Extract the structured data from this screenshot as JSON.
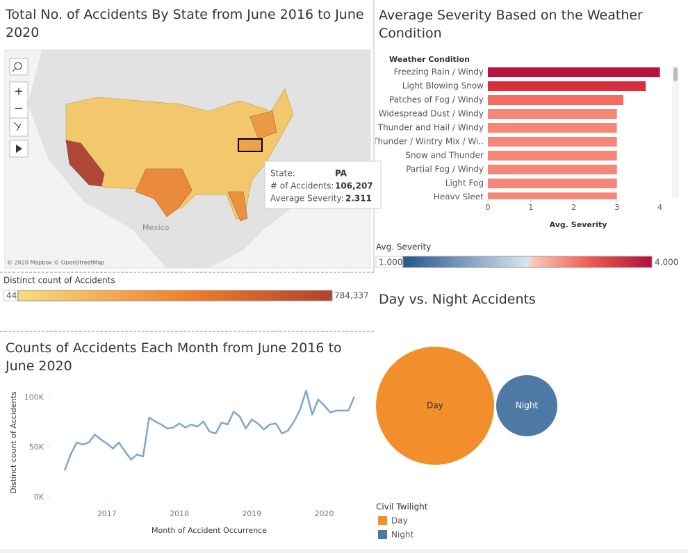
{
  "map": {
    "title": "Total No. of Accidents By State from June 2016 to June 2020",
    "place_label": "Mexico",
    "attribution": "© 2020 Mapbox © OpenStreetMap",
    "tooltip": {
      "state_label": "State:",
      "state": "PA",
      "accidents_label": "# of Accidents:",
      "accidents": "106,207",
      "severity_label": "Average Severity:",
      "severity": "2.311"
    },
    "legend": {
      "title": "Distinct count of Accidents",
      "min": "44",
      "max": "784,337"
    }
  },
  "severity_legend": {
    "title": "Avg. Severity",
    "min": "1.000",
    "max": "4.000"
  },
  "chart_data": [
    {
      "type": "hbar",
      "title": "Average Severity Based on the Weather Condition",
      "category_header": "Weather Condition",
      "xlabel": "Avg. Severity",
      "categories": [
        "Freezing Rain / Windy",
        "Light Blowing Snow",
        "Patches of Fog / Windy",
        "Widespread Dust / Windy",
        "Thunder and Hail / Windy",
        "Thunder / Wintry Mix / Wi..",
        "Snow and Thunder",
        "Partial Fog / Windy",
        "Light Fog",
        "Heavy Sleet"
      ],
      "values": [
        4.0,
        3.67,
        3.15,
        3.0,
        3.0,
        3.0,
        3.0,
        3.0,
        3.0,
        3.0
      ],
      "colors": [
        "#b8123e",
        "#d8303e",
        "#f26e5e",
        "#f4877a",
        "#f4877a",
        "#f4877a",
        "#f4877a",
        "#f4877a",
        "#f4877a",
        "#f4877a"
      ],
      "xlim": [
        0,
        4.2
      ],
      "xticks": [
        0,
        1,
        2,
        3,
        4
      ]
    },
    {
      "type": "line",
      "title": "Counts of Accidents Each Month from June 2016 to June 2020",
      "ylabel": "Distinct count of Accidents",
      "xlabel": "Month of Accident Occurrence",
      "color": "#7ea6cb",
      "x": [
        "2016-06",
        "2016-07",
        "2016-08",
        "2016-09",
        "2016-10",
        "2016-11",
        "2016-12",
        "2017-01",
        "2017-02",
        "2017-03",
        "2017-04",
        "2017-05",
        "2017-06",
        "2017-07",
        "2017-08",
        "2017-09",
        "2017-10",
        "2017-11",
        "2017-12",
        "2018-01",
        "2018-02",
        "2018-03",
        "2018-04",
        "2018-05",
        "2018-06",
        "2018-07",
        "2018-08",
        "2018-09",
        "2018-10",
        "2018-11",
        "2018-12",
        "2019-01",
        "2019-02",
        "2019-03",
        "2019-04",
        "2019-05",
        "2019-06",
        "2019-07",
        "2019-08",
        "2019-09",
        "2019-10",
        "2019-11",
        "2019-12",
        "2020-01",
        "2020-02",
        "2020-03",
        "2020-04",
        "2020-05",
        "2020-06"
      ],
      "values": [
        27000,
        43000,
        55000,
        53000,
        55000,
        63000,
        58000,
        54000,
        49000,
        55000,
        46000,
        38000,
        43000,
        41000,
        80000,
        76000,
        73000,
        69000,
        70000,
        74000,
        70000,
        73000,
        71000,
        76000,
        66000,
        64000,
        75000,
        73000,
        86000,
        81000,
        69000,
        78000,
        74000,
        68000,
        73000,
        74000,
        64000,
        67000,
        76000,
        88000,
        107000,
        83000,
        98000,
        92000,
        85000,
        87000,
        87000,
        87000,
        101000
      ],
      "xlim": [
        "2016-06",
        "2020-06"
      ],
      "xticks": [
        {
          "value": "2017-01",
          "label": "2017"
        },
        {
          "value": "2018-01",
          "label": "2018"
        },
        {
          "value": "2019-01",
          "label": "2019"
        },
        {
          "value": "2020-01",
          "label": "2020"
        }
      ],
      "ylim": [
        0,
        112000
      ],
      "yticks": [
        {
          "value": 0,
          "label": "0K"
        },
        {
          "value": 50000,
          "label": "50K"
        },
        {
          "value": 100000,
          "label": "100K"
        }
      ]
    },
    {
      "type": "bubble",
      "title": "Day vs. Night Accidents",
      "legend_title": "Civil Twilight",
      "categories": [
        "Day",
        "Night"
      ],
      "values": [
        2350000,
        630000
      ],
      "colors": [
        "#f28e2b",
        "#4e79a7"
      ]
    }
  ]
}
